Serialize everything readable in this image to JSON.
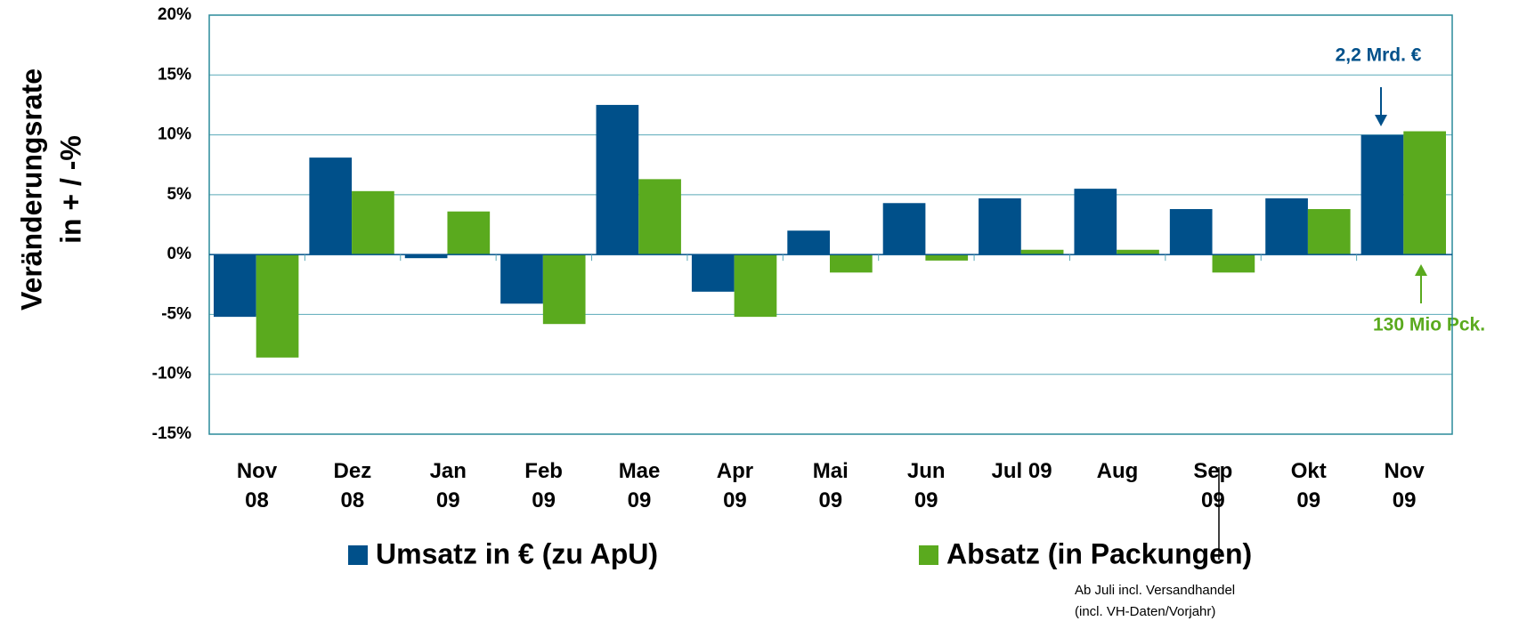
{
  "chart_data": {
    "type": "bar",
    "y_label": [
      "Veränderungsrate",
      "in + / -%"
    ],
    "categories": [
      "Nov\n08",
      "Dez\n08",
      "Jan\n09",
      "Feb\n09",
      "Mae\n09",
      "Apr\n09",
      "Mai\n09",
      "Jun\n09",
      "Jul 09",
      "Aug",
      "Sep\n09",
      "Okt\n09",
      "Nov\n09"
    ],
    "series": [
      {
        "name": "Umsatz in € (zu ApU)",
        "color": "#00508a",
        "values": [
          -5.2,
          8.1,
          -0.3,
          -4.1,
          12.5,
          -3.1,
          2.0,
          4.3,
          4.7,
          5.5,
          3.8,
          4.7,
          10.0
        ]
      },
      {
        "name": "Absatz (in Packungen)",
        "color": "#5aaa1e",
        "values": [
          -8.6,
          5.3,
          3.6,
          -5.8,
          6.3,
          -5.2,
          -1.5,
          -0.5,
          0.4,
          0.4,
          -1.5,
          3.8,
          10.3
        ]
      }
    ],
    "ylim": [
      -15,
      20
    ],
    "yticks": [
      {
        "value": -15,
        "label": "-15%"
      },
      {
        "value": -10,
        "label": "-10%"
      },
      {
        "value": -5,
        "label": "-5%"
      },
      {
        "value": 0,
        "label": "0%"
      },
      {
        "value": 5,
        "label": "5%"
      },
      {
        "value": 10,
        "label": "10%"
      },
      {
        "value": 15,
        "label": "15%"
      },
      {
        "value": 20,
        "label": "20%"
      }
    ],
    "grid": true,
    "annotations": [
      "2,2 Mrd. €",
      "130 Mio Pck."
    ],
    "footnote": [
      "Ab Juli incl. Versandhandel",
      "(incl. VH-Daten/Vorjahr)"
    ]
  }
}
